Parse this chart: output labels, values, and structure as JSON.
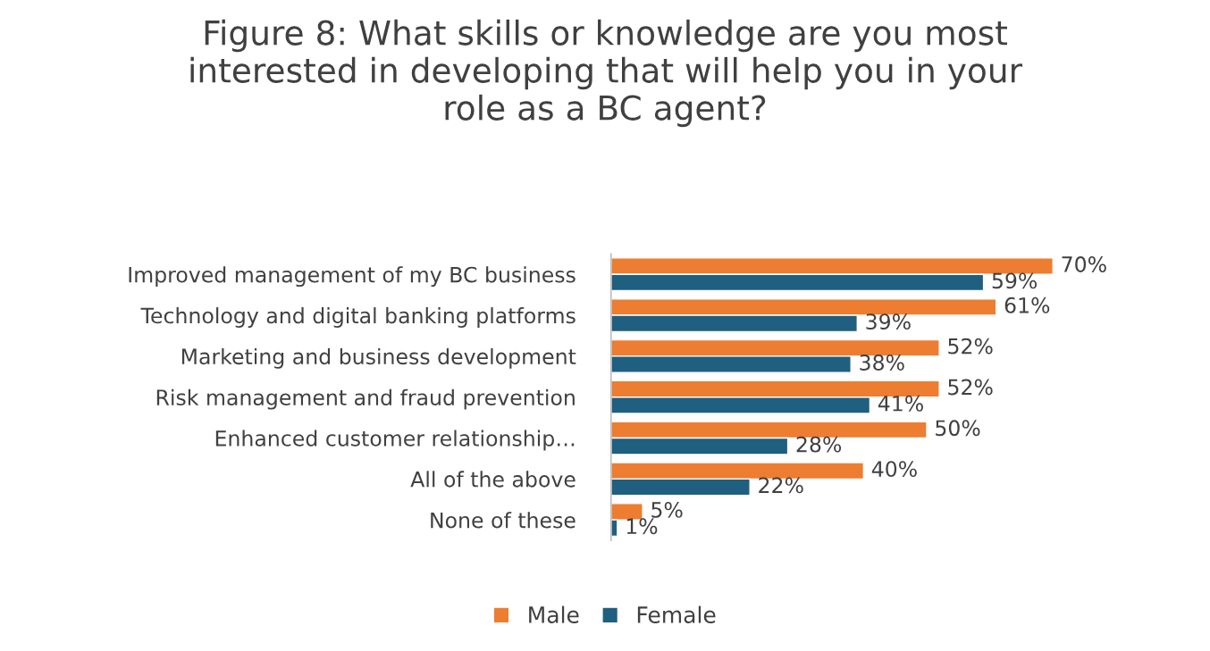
{
  "chart_data": {
    "type": "bar",
    "orientation": "horizontal",
    "title": "Figure 8: What skills or knowledge are you most interested in developing that will help you in your role as a BC agent?",
    "categories": [
      "Improved management of my BC business",
      "Technology and digital banking platforms",
      "Marketing and business development",
      "Risk management and fraud prevention",
      "Enhanced customer relationship…",
      "All of the above",
      "None of these"
    ],
    "series": [
      {
        "name": "Male",
        "color": "#ed7d31",
        "values": [
          70,
          61,
          52,
          52,
          50,
          40,
          5
        ],
        "value_labels": [
          "70%",
          "61%",
          "52%",
          "52%",
          "50%",
          "40%",
          "5%"
        ]
      },
      {
        "name": "Female",
        "color": "#1f5f7f",
        "values": [
          59,
          39,
          38,
          41,
          28,
          22,
          1
        ],
        "value_labels": [
          "59%",
          "39%",
          "38%",
          "41%",
          "28%",
          "22%",
          "1%"
        ]
      }
    ],
    "legend": "bottom",
    "grid": false
  }
}
